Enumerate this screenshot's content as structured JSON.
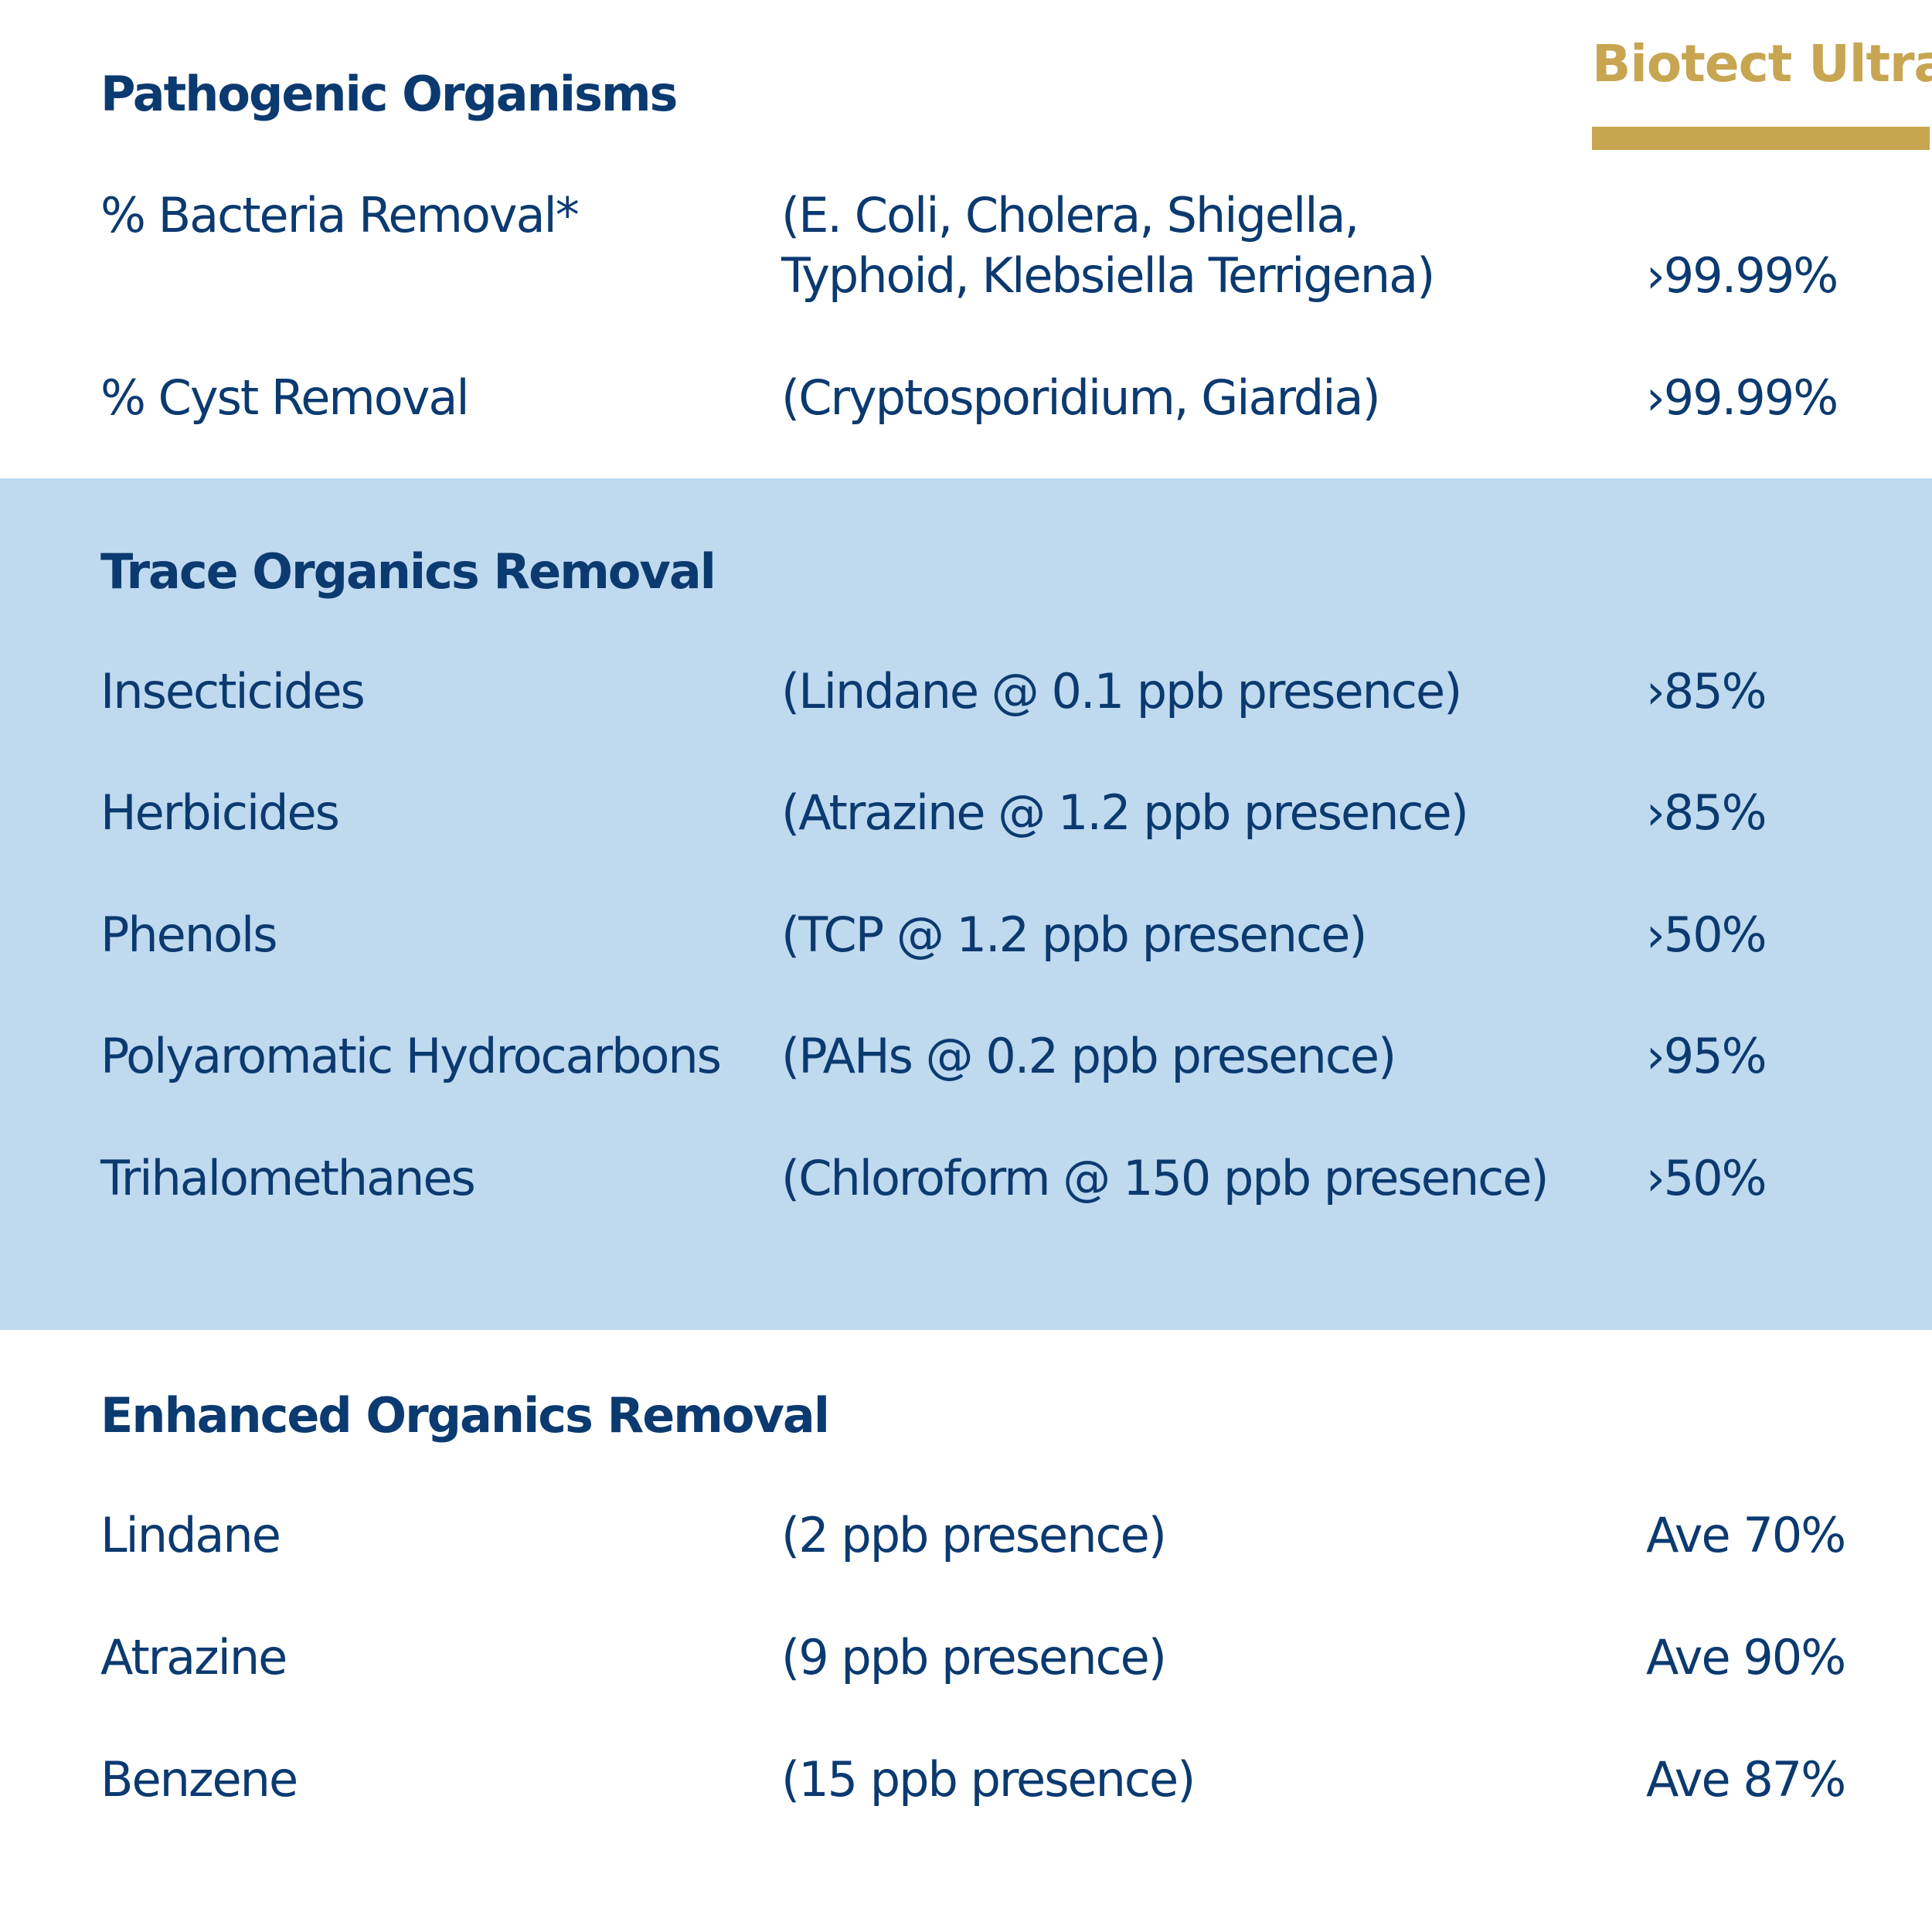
{
  "brand": {
    "name": "Biotect Ultra",
    "color": "#c7a551"
  },
  "colors": {
    "text": "#0b3a70",
    "band": "#bfd9ef"
  },
  "sections": [
    {
      "heading": "Pathogenic Organisms",
      "rows": [
        {
          "name": "% Bacteria Removal*",
          "detail_lines": [
            "(E. Coli, Cholera, Shigella,",
            "Typhoid, Klebsiella Terrigena)"
          ],
          "value": "›99.99%"
        },
        {
          "name": "% Cyst Removal",
          "detail": "(Cryptosporidium, Giardia)",
          "value": "›99.99%"
        }
      ]
    },
    {
      "heading": "Trace Organics Removal",
      "rows": [
        {
          "name": "Insecticides",
          "detail": "(Lindane @ 0.1 ppb presence)",
          "value": "›85%"
        },
        {
          "name": "Herbicides",
          "detail": "(Atrazine @ 1.2 ppb presence)",
          "value": "›85%"
        },
        {
          "name": "Phenols",
          "detail": "(TCP @ 1.2 ppb presence)",
          "value": "›50%"
        },
        {
          "name": "Polyaromatic Hydrocarbons",
          "detail": "(PAHs @ 0.2 ppb presence)",
          "value": "›95%"
        },
        {
          "name": "Trihalomethanes",
          "detail": "(Chloroform @ 150 ppb presence)",
          "value": "›50%"
        }
      ]
    },
    {
      "heading": "Enhanced Organics Removal",
      "rows": [
        {
          "name": "Lindane",
          "detail": "(2 ppb presence)",
          "value": "Ave 70%"
        },
        {
          "name": "Atrazine",
          "detail": "(9 ppb presence)",
          "value": "Ave 90%"
        },
        {
          "name": "Benzene",
          "detail": "(15 ppb presence)",
          "value": "Ave 87%"
        }
      ]
    }
  ]
}
